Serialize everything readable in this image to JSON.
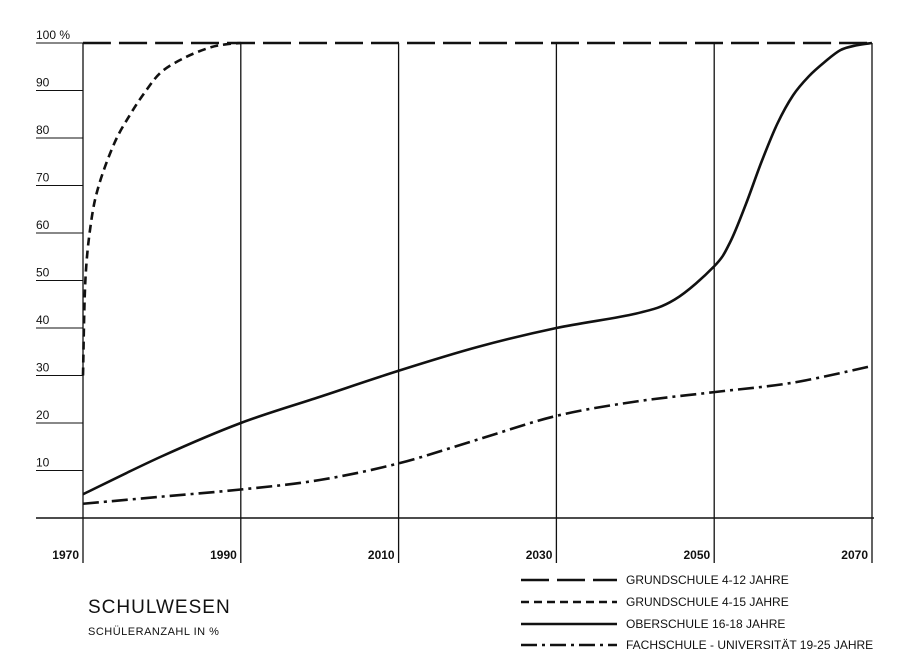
{
  "chart_data": {
    "type": "line",
    "title": "SCHULWESEN",
    "subtitle": "SCHÜLERANZAHL IN %",
    "xlabel": "",
    "ylabel": "",
    "xlim": [
      1970,
      2070
    ],
    "ylim": [
      0,
      100
    ],
    "x_ticks": [
      "1970",
      "1990",
      "2010",
      "2030",
      "2050",
      "2070"
    ],
    "y_ticks": [
      "10",
      "20",
      "30",
      "40",
      "50",
      "60",
      "70",
      "80",
      "90",
      "100 %"
    ],
    "grid": "vertical",
    "legend_position": "bottom-right",
    "series": [
      {
        "name": "GRUNDSCHULE 4-12 JAHRE",
        "style": "long-dash",
        "x": [
          1970,
          1980,
          1990,
          2000,
          2010,
          2020,
          2030,
          2040,
          2050,
          2060,
          2070
        ],
        "y": [
          100,
          100,
          100,
          100,
          100,
          100,
          100,
          100,
          100,
          100,
          100
        ]
      },
      {
        "name": "GRUNDSCHULE 4-15 JAHRE",
        "style": "dash",
        "x": [
          1970,
          1970.3,
          1971,
          1972,
          1974,
          1976,
          1978,
          1980,
          1983,
          1986,
          1988,
          1990
        ],
        "y": [
          30,
          50,
          62,
          70,
          79,
          85,
          90,
          94,
          97,
          99,
          99.7,
          100
        ]
      },
      {
        "name": "OBERSCHULE 16-18 JAHRE",
        "style": "solid",
        "x": [
          1970,
          1980,
          1990,
          2000,
          2010,
          2020,
          2030,
          2040,
          2045,
          2050,
          2052,
          2054,
          2056,
          2058,
          2060,
          2062,
          2064,
          2066,
          2068,
          2070
        ],
        "y": [
          5,
          13,
          20,
          25.5,
          31,
          36,
          40,
          43,
          46,
          53,
          58,
          66,
          75,
          83,
          89,
          93,
          96,
          98.5,
          99.5,
          100
        ]
      },
      {
        "name": "FACHSCHULE - UNIVERSITÄT 19-25 JAHRE",
        "style": "dash-dot",
        "x": [
          1970,
          1980,
          1990,
          2000,
          2010,
          2020,
          2030,
          2040,
          2050,
          2060,
          2070
        ],
        "y": [
          3,
          4.5,
          6,
          8,
          11.5,
          16.5,
          21.5,
          24.5,
          26.5,
          28.5,
          32
        ]
      }
    ]
  }
}
